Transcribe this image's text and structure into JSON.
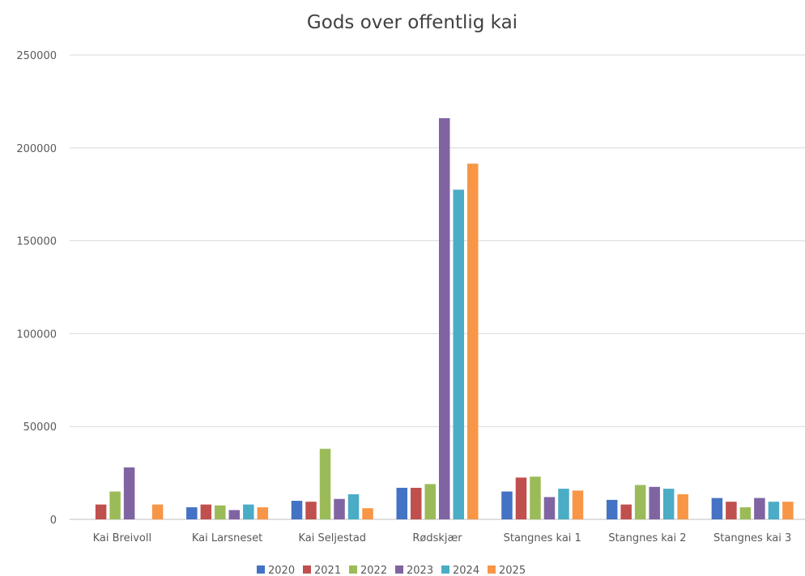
{
  "chart_data": {
    "type": "bar",
    "title": "Gods over offentlig kai",
    "xlabel": "",
    "ylabel": "",
    "ylim": [
      0,
      250000
    ],
    "yticks": [
      0,
      50000,
      100000,
      150000,
      200000,
      250000
    ],
    "grid": true,
    "legend_position": "bottom",
    "categories": [
      "Kai Breivoll",
      "Kai Larsneset",
      "Kai Seljestad",
      "Rødskjær",
      "Stangnes kai 1",
      "Stangnes kai 2",
      "Stangnes kai 3"
    ],
    "series": [
      {
        "name": "2020",
        "color": "#4472c4",
        "values": [
          0,
          6500,
          10000,
          17000,
          15000,
          10500,
          11500
        ]
      },
      {
        "name": "2021",
        "color": "#c0504d",
        "values": [
          8000,
          8000,
          9500,
          17000,
          22500,
          8000,
          9500
        ]
      },
      {
        "name": "2022",
        "color": "#9bbb59",
        "values": [
          15000,
          7500,
          38000,
          19000,
          23000,
          18500,
          6500
        ]
      },
      {
        "name": "2023",
        "color": "#8064a2",
        "values": [
          28000,
          5000,
          11000,
          216000,
          12000,
          17500,
          11500
        ]
      },
      {
        "name": "2024",
        "color": "#4bacc6",
        "values": [
          0,
          8000,
          13500,
          177500,
          16500,
          16500,
          9500
        ]
      },
      {
        "name": "2025",
        "color": "#f79646",
        "values": [
          8000,
          6500,
          6000,
          191500,
          15500,
          13500,
          9500
        ]
      }
    ]
  }
}
